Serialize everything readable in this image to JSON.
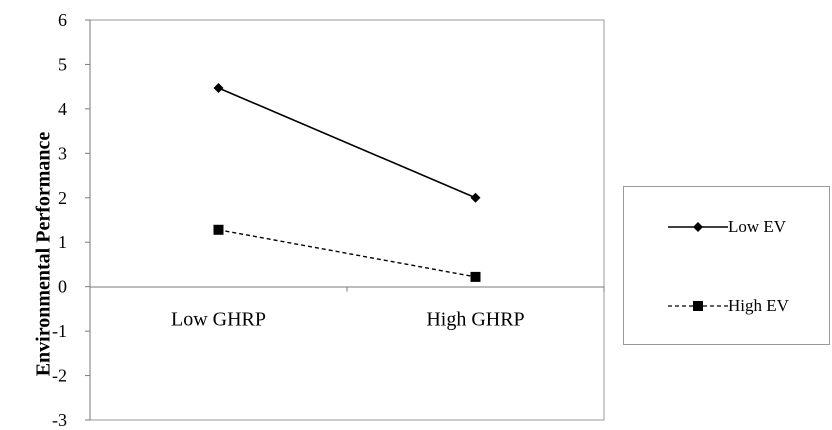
{
  "chart_data": {
    "type": "line",
    "title": "",
    "xlabel": "",
    "ylabel": "Environmental Performance",
    "categories": [
      "Low GHRP",
      "High GHRP"
    ],
    "ylim": [
      -3,
      6
    ],
    "yticks": [
      "6",
      "5",
      "4",
      "3",
      "2",
      "1",
      "0",
      "-1",
      "-2",
      "-3"
    ],
    "grid": false,
    "legend_position": "right",
    "series": [
      {
        "name": "Low EV",
        "values": [
          4.47,
          2.0
        ],
        "line_style": "solid",
        "marker": "diamond",
        "color": "#000000"
      },
      {
        "name": "High EV",
        "values": [
          1.28,
          0.22
        ],
        "line_style": "dashed",
        "marker": "square",
        "color": "#000000"
      }
    ]
  }
}
